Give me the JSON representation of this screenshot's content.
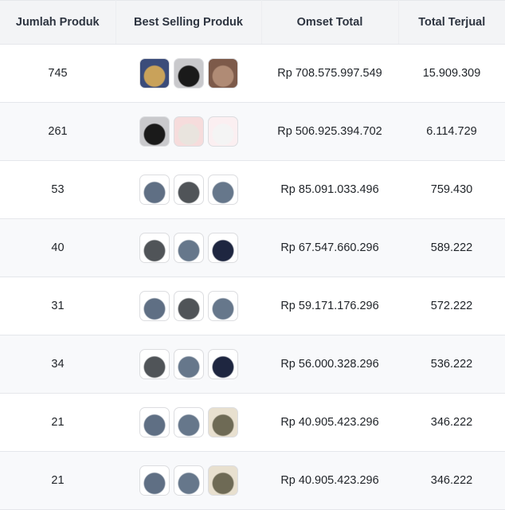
{
  "headers": [
    "Jumlah Produk",
    "Best Selling Produk",
    "Omset Total",
    "Total Terjual"
  ],
  "rows": [
    {
      "jumlah": "745",
      "omset": "Rp 708.575.997.549",
      "terjual": "15.909.309",
      "thumbs": [
        [
          "#3b4c7a",
          "#c9a25a"
        ],
        [
          "#c9c9cc",
          "#1a1a1a"
        ],
        [
          "#7d5a4a",
          "#b08b75"
        ]
      ]
    },
    {
      "jumlah": "261",
      "omset": "Rp 506.925.394.702",
      "terjual": "6.114.729",
      "thumbs": [
        [
          "#c9c9cc",
          "#1a1a1a"
        ],
        [
          "#f6dcdc",
          "#e9e4de"
        ],
        [
          "#fbeff1",
          "#f4f4f4"
        ]
      ]
    },
    {
      "jumlah": "53",
      "omset": "Rp 85.091.033.496",
      "terjual": "759.430",
      "thumbs": [
        [
          "#ffffff",
          "#5f6f84"
        ],
        [
          "#ffffff",
          "#505458"
        ],
        [
          "#ffffff",
          "#66778b"
        ]
      ]
    },
    {
      "jumlah": "40",
      "omset": "Rp 67.547.660.296",
      "terjual": "589.222",
      "thumbs": [
        [
          "#ffffff",
          "#505458"
        ],
        [
          "#ffffff",
          "#66778b"
        ],
        [
          "#ffffff",
          "#1e2640"
        ]
      ]
    },
    {
      "jumlah": "31",
      "omset": "Rp 59.171.176.296",
      "terjual": "572.222",
      "thumbs": [
        [
          "#ffffff",
          "#5f6f84"
        ],
        [
          "#ffffff",
          "#505458"
        ],
        [
          "#ffffff",
          "#66778b"
        ]
      ]
    },
    {
      "jumlah": "34",
      "omset": "Rp 56.000.328.296",
      "terjual": "536.222",
      "thumbs": [
        [
          "#ffffff",
          "#505458"
        ],
        [
          "#ffffff",
          "#66778b"
        ],
        [
          "#ffffff",
          "#1e2640"
        ]
      ]
    },
    {
      "jumlah": "21",
      "omset": "Rp 40.905.423.296",
      "terjual": "346.222",
      "thumbs": [
        [
          "#ffffff",
          "#5f6f84"
        ],
        [
          "#ffffff",
          "#66778b"
        ],
        [
          "#e8e0cf",
          "#6e6a55"
        ]
      ]
    },
    {
      "jumlah": "21",
      "omset": "Rp 40.905.423.296",
      "terjual": "346.222",
      "thumbs": [
        [
          "#ffffff",
          "#5f6f84"
        ],
        [
          "#ffffff",
          "#66778b"
        ],
        [
          "#e8e0cf",
          "#6e6a55"
        ]
      ]
    }
  ]
}
